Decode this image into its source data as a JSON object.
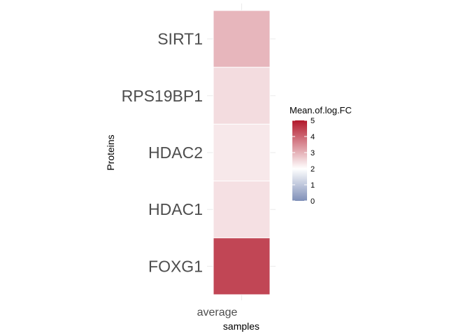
{
  "chart_data": {
    "type": "heatmap",
    "title": "",
    "xlabel": "samples",
    "ylabel": "Proteins",
    "x_categories": [
      "average"
    ],
    "y_categories": [
      "SIRT1",
      "RPS19BP1",
      "HDAC2",
      "HDAC1",
      "FOXG1"
    ],
    "values": [
      {
        "protein": "SIRT1",
        "sample": "average",
        "value": 2.95
      },
      {
        "protein": "RPS19BP1",
        "sample": "average",
        "value": 2.45
      },
      {
        "protein": "HDAC2",
        "sample": "average",
        "value": 2.3
      },
      {
        "protein": "HDAC1",
        "sample": "average",
        "value": 2.4
      },
      {
        "protein": "FOXG1",
        "sample": "average",
        "value": 4.4
      }
    ],
    "legend": {
      "title": "Mean.of.log.FC",
      "position": "right",
      "ticks": [
        "0",
        "1",
        "2",
        "3",
        "4",
        "5"
      ],
      "range": [
        0,
        5
      ],
      "midpoint": 2
    },
    "colors": {
      "low": "#7f8fb8",
      "mid": "#ffffff",
      "high": "#b2182b",
      "grid": "#ebebeb"
    },
    "grid": true
  }
}
